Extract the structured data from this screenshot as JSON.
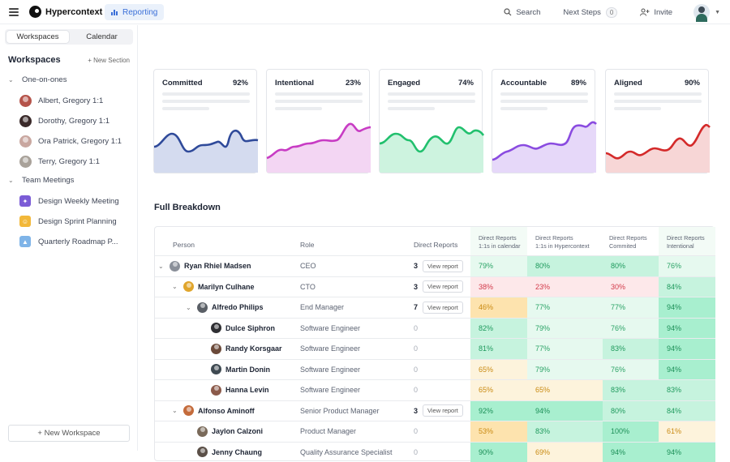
{
  "topbar": {
    "brand": "Hypercontext",
    "reporting": "Reporting",
    "search": "Search",
    "next_steps": "Next Steps",
    "next_steps_count": "0",
    "invite": "Invite"
  },
  "sidebar": {
    "tabs": [
      "Workspaces",
      "Calendar"
    ],
    "title": "Workspaces",
    "new_section": "+ New Section",
    "groups": [
      {
        "label": "One-on-ones",
        "items": [
          "Albert, Gregory 1:1",
          "Dorothy, Gregory 1:1",
          "Ora Patrick, Gregory 1:1",
          "Terry, Gregory 1:1"
        ]
      },
      {
        "label": "Team Meetings",
        "items": [
          "Design Weekly Meeting",
          "Design Sprint Planning",
          "Quarterly Roadmap P..."
        ]
      }
    ],
    "new_workspace": "+ New Workspace"
  },
  "cards": [
    {
      "title": "Committed",
      "pct": "92%",
      "color": "#2f4a9a",
      "fill": "#d4dbef"
    },
    {
      "title": "Intentional",
      "pct": "23%",
      "color": "#c83cc4",
      "fill": "#f3d6f3"
    },
    {
      "title": "Engaged",
      "pct": "74%",
      "color": "#22c06e",
      "fill": "#cdf3df"
    },
    {
      "title": "Accountable",
      "pct": "89%",
      "color": "#8a4be0",
      "fill": "#e6d8f9"
    },
    {
      "title": "Aligned",
      "pct": "90%",
      "color": "#d42a2a",
      "fill": "#f7d6d6"
    }
  ],
  "breakdown": {
    "title": "Full Breakdown",
    "headers": {
      "person": "Person",
      "role": "Role",
      "direct_reports": "Direct Reports",
      "m1a": "Direct Reports",
      "m1b": "1:1s in calendar",
      "m2a": "Direct Reports",
      "m2b": "1:1s in Hypercontext",
      "m3a": "Direct Reports",
      "m3b": "Commited",
      "m4a": "Direct Reports",
      "m4b": "Intentional"
    },
    "view_report": "View report",
    "rows": [
      {
        "name": "Ryan Rhiel Madsen",
        "role": "CEO",
        "reports": "3",
        "m": [
          "79%",
          "80%",
          "80%",
          "76%"
        ]
      },
      {
        "name": "Marilyn Culhane",
        "role": "CTO",
        "reports": "3",
        "m": [
          "38%",
          "23%",
          "30%",
          "84%"
        ]
      },
      {
        "name": "Alfredo Philips",
        "role": "End Manager",
        "reports": "7",
        "m": [
          "46%",
          "77%",
          "77%",
          "94%"
        ]
      },
      {
        "name": "Dulce Siphron",
        "role": "Software Engineer",
        "reports": "0",
        "m": [
          "82%",
          "79%",
          "76%",
          "94%"
        ]
      },
      {
        "name": "Randy Korsgaar",
        "role": "Software Engineer",
        "reports": "0",
        "m": [
          "81%",
          "77%",
          "83%",
          "94%"
        ]
      },
      {
        "name": "Martin Donin",
        "role": "Software Engineer",
        "reports": "0",
        "m": [
          "65%",
          "79%",
          "76%",
          "94%"
        ]
      },
      {
        "name": "Hanna Levin",
        "role": "Software Engineer",
        "reports": "0",
        "m": [
          "65%",
          "65%",
          "83%",
          "83%"
        ]
      },
      {
        "name": "Alfonso Aminoff",
        "role": "Senior Product Manager",
        "reports": "3",
        "m": [
          "92%",
          "94%",
          "80%",
          "84%"
        ]
      },
      {
        "name": "Jaylon Calzoni",
        "role": "Product Manager",
        "reports": "0",
        "m": [
          "53%",
          "83%",
          "100%",
          "61%"
        ]
      },
      {
        "name": "Jenny Chaung",
        "role": "Quality Assurance Specialist",
        "reports": "0",
        "m": [
          "90%",
          "69%",
          "94%",
          "94%"
        ]
      }
    ]
  }
}
